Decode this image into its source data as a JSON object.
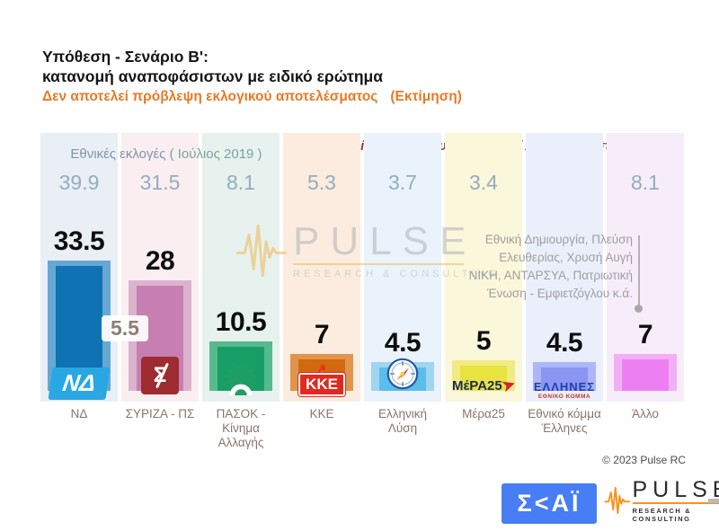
{
  "title": {
    "line1": "Υπόθεση - Σενάριο Β':",
    "line2": "κατανομή αναποφάσιστων με ειδικό ερώτημα",
    "disclaimer": "Δεν αποτελεί πρόβλεψη εκλογικού αποτελέσματος",
    "estimation": "(Εκτίμηση)"
  },
  "header": {
    "past_election_label": "Εθνικές εκλογές",
    "past_election_period": "( Ιούλιος 2019 )",
    "exclusion_note": "( Χωρίς Λευκό / Άκυρο / Αποχή / Αναποφάσιστους / ΔΑ )"
  },
  "badge_lead_gap": "5.5",
  "annotation": {
    "lines": [
      "Εθνική Δημιουργία, Πλεύση",
      "Ελευθερίας, Χρυσή Αυγή",
      "ΝΙΚΗ, ΑΝΤΑΡΣΥΑ, Πατριωτική",
      "Ένωση - Εμφιετζόγλου   κ.ά."
    ]
  },
  "watermark": {
    "brand": "PULSE",
    "tagline": "RESEARCH & CONSULTING"
  },
  "footer": {
    "copyright": "© 2023 Pulse RC",
    "skai_logo": "Σ<ΑΪ",
    "pulse_brand": "PULSE",
    "pulse_tagline": "RESEARCH & CONSULTING"
  },
  "chart_data": {
    "type": "bar",
    "title": "Υπόθεση - Σενάριο Β': κατανομή αναποφάσιστων με ειδικό ερώτημα",
    "subtitle": "Δεν αποτελεί πρόβλεψη εκλογικού αποτελέσματος (Εκτίμηση)",
    "note": "( Χωρίς Λευκό / Άκυρο / Αποχή / Αναποφάσιστους / ΔΑ )",
    "categories": [
      "ΝΔ",
      "ΣΥΡΙΖΑ - ΠΣ",
      "ΠΑΣΟΚ - Κίνημα Αλλαγής",
      "ΚΚΕ",
      "Ελληνική Λύση",
      "Μέρα25",
      "Εθνικό κόμμα Έλληνες",
      "Άλλο"
    ],
    "series": [
      {
        "name": "Εκτίμηση (Σενάριο Β')",
        "values": [
          33.5,
          28,
          10.5,
          7,
          4.5,
          5,
          4.5,
          7
        ]
      },
      {
        "name": "Εθνικές εκλογές ( Ιούλιος 2019 )",
        "values": [
          39.9,
          31.5,
          8.1,
          5.3,
          3.7,
          3.4,
          null,
          8.1
        ]
      }
    ],
    "lead_gap_first_vs_second": 5.5,
    "other_parties_note": "Εθνική Δημιουργία, Πλεύση Ελευθερίας, Χρυσή Αυγή, ΝΙΚΗ, ΑΝΤΑΡΣΥΑ, Πατριωτική Ένωση - Εμφιετζόγλου κ.ά.",
    "ylim": [
      0,
      45
    ],
    "grid": false,
    "legend_position": "none"
  },
  "parties": [
    {
      "label": "ΝΔ",
      "value_display": "33.5",
      "past_display": "39.9",
      "colors": {
        "column_bg": "#e9eff4",
        "bar": "#0f72b2",
        "bar_light": "#66a7d4"
      },
      "logo": {
        "type": "nd",
        "text": "ΝΔ"
      }
    },
    {
      "label": "ΣΥΡΙΖΑ - ΠΣ",
      "value_display": "28",
      "past_display": "31.5",
      "colors": {
        "column_bg": "#faeef1",
        "bar": "#c67fb0",
        "bar_light": "#dcb3cd"
      },
      "logo": {
        "type": "syriza",
        "text": "Σ"
      }
    },
    {
      "label": "ΠΑΣΟΚ - Κίνημα Αλλαγής",
      "value_display": "10.5",
      "past_display": "8.1",
      "colors": {
        "column_bg": "#e7f1ed",
        "bar": "#179e66",
        "bar_light": "#57ba8c"
      },
      "logo": {
        "type": "pasok",
        "text": ""
      }
    },
    {
      "label": "ΚΚΕ",
      "value_display": "7",
      "past_display": "5.3",
      "colors": {
        "column_bg": "#fbecdf",
        "bar": "#d2690e",
        "bar_light": "#e0954c"
      },
      "logo": {
        "type": "kke",
        "text": "ΚΚΕ"
      }
    },
    {
      "label": "Ελληνική Λύση",
      "value_display": "4.5",
      "past_display": "3.7",
      "colors": {
        "column_bg": "#eaf3fb",
        "bar": "#5bbde9",
        "bar_light": "#9fd5f1"
      },
      "logo": {
        "type": "compass",
        "text": ""
      }
    },
    {
      "label": "Μέρα25",
      "value_display": "5",
      "past_display": "3.4",
      "colors": {
        "column_bg": "#fbf7da",
        "bar": "#e9e340",
        "bar_light": "#f0eb82"
      },
      "logo": {
        "type": "mera",
        "text": "ΜέΡΑ25"
      }
    },
    {
      "label": "Εθνικό κόμμα Έλληνες",
      "value_display": "4.5",
      "past_display": "",
      "colors": {
        "column_bg": "#ebeffb",
        "bar": "#8a96f2",
        "bar_light": "#adb6f6"
      },
      "logo": {
        "type": "el",
        "text": "ΕΛΛΗΝΕΣ",
        "subtext": "ΕΘΝΙΚΟ ΚΟΜΜΑ"
      }
    },
    {
      "label": "Άλλο",
      "value_display": "7",
      "past_display": "8.1",
      "colors": {
        "column_bg": "#f7edfa",
        "bar": "#ec80f2",
        "bar_light": "#f3aef6"
      },
      "logo": {
        "type": "none",
        "text": ""
      }
    }
  ]
}
